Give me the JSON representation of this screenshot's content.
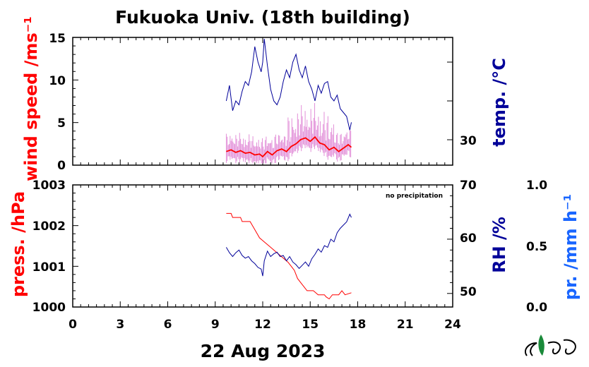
{
  "title": "Fukuoka Univ. (18th building)",
  "date_label": "22 Aug 2023",
  "colors": {
    "red": "#ff0000",
    "navy": "#000099",
    "pink": "#e28fd8",
    "blue": "#1a66ff",
    "black": "#000000"
  },
  "logo": {
    "icon": "nies-logo",
    "text": "NIES"
  },
  "x_axis": {
    "ticks": [
      "0",
      "3",
      "6",
      "9",
      "12",
      "15",
      "18",
      "21",
      "24"
    ],
    "range": [
      0,
      24
    ]
  },
  "top_panel": {
    "left_axis": {
      "label": "wind speed /ms⁻¹",
      "ticks": [
        "0",
        "5",
        "10",
        "15"
      ],
      "range": [
        0,
        15
      ]
    },
    "right_axis": {
      "label": "temp. /°C",
      "ticks": [
        "30"
      ]
    }
  },
  "bottom_panel": {
    "left_axis": {
      "label": "press. /hPa",
      "ticks": [
        "1000",
        "1001",
        "1002",
        "1003"
      ],
      "range": [
        1000,
        1003
      ]
    },
    "right_axis": {
      "label": "RH /%",
      "ticks": [
        "50",
        "60",
        "70"
      ],
      "range": [
        47.5,
        70
      ]
    },
    "far_right_axis": {
      "label": "pr. /mm h⁻¹",
      "ticks": [
        "0.0",
        "0.5",
        "1.0"
      ]
    },
    "note": "no precipitation"
  },
  "chart_data": [
    {
      "type": "line",
      "panel": "top",
      "x_range": [
        0,
        24
      ],
      "series": [
        {
          "key": "temp",
          "axis": "right",
          "points": [
            [
              9.7,
              32.0
            ],
            [
              9.9,
              32.8
            ],
            [
              10.1,
              31.5
            ],
            [
              10.3,
              32.0
            ],
            [
              10.5,
              31.8
            ],
            [
              10.7,
              32.5
            ],
            [
              10.9,
              33.0
            ],
            [
              11.1,
              32.8
            ],
            [
              11.3,
              33.5
            ],
            [
              11.5,
              34.8
            ],
            [
              11.7,
              34.0
            ],
            [
              11.9,
              33.5
            ],
            [
              12.0,
              34.0
            ],
            [
              12.1,
              35.2
            ],
            [
              12.3,
              33.8
            ],
            [
              12.5,
              32.6
            ],
            [
              12.7,
              32.0
            ],
            [
              12.9,
              31.8
            ],
            [
              13.1,
              32.2
            ],
            [
              13.3,
              33.0
            ],
            [
              13.5,
              33.6
            ],
            [
              13.7,
              33.2
            ],
            [
              13.9,
              34.0
            ],
            [
              14.1,
              34.4
            ],
            [
              14.3,
              33.6
            ],
            [
              14.5,
              33.2
            ],
            [
              14.7,
              33.8
            ],
            [
              14.9,
              33.0
            ],
            [
              15.1,
              32.6
            ],
            [
              15.3,
              32.0
            ],
            [
              15.5,
              32.8
            ],
            [
              15.7,
              32.4
            ],
            [
              15.9,
              32.9
            ],
            [
              16.1,
              33.0
            ],
            [
              16.3,
              32.2
            ],
            [
              16.5,
              32.0
            ],
            [
              16.7,
              32.3
            ],
            [
              16.9,
              31.6
            ],
            [
              17.1,
              31.4
            ],
            [
              17.3,
              31.2
            ],
            [
              17.5,
              30.5
            ],
            [
              17.6,
              30.9
            ]
          ]
        },
        {
          "key": "wind_mean",
          "axis": "left",
          "points": [
            [
              9.7,
              1.6
            ],
            [
              10.0,
              1.8
            ],
            [
              10.3,
              1.5
            ],
            [
              10.6,
              1.7
            ],
            [
              10.9,
              1.4
            ],
            [
              11.2,
              1.5
            ],
            [
              11.5,
              1.2
            ],
            [
              11.8,
              1.3
            ],
            [
              12.0,
              1.0
            ],
            [
              12.3,
              1.6
            ],
            [
              12.6,
              1.2
            ],
            [
              12.9,
              1.7
            ],
            [
              13.2,
              1.9
            ],
            [
              13.5,
              1.6
            ],
            [
              13.8,
              2.2
            ],
            [
              14.1,
              2.5
            ],
            [
              14.4,
              3.0
            ],
            [
              14.7,
              3.2
            ],
            [
              15.0,
              2.8
            ],
            [
              15.3,
              3.3
            ],
            [
              15.6,
              2.6
            ],
            [
              15.9,
              2.4
            ],
            [
              16.2,
              1.8
            ],
            [
              16.5,
              2.1
            ],
            [
              16.8,
              1.6
            ],
            [
              17.1,
              2.0
            ],
            [
              17.4,
              2.4
            ],
            [
              17.6,
              2.1
            ]
          ]
        }
      ]
    },
    {
      "type": "line",
      "panel": "bottom",
      "x_range": [
        0,
        24
      ],
      "series": [
        {
          "key": "pressure",
          "axis": "left",
          "points": [
            [
              9.7,
              1002.3
            ],
            [
              10.0,
              1002.3
            ],
            [
              10.1,
              1002.2
            ],
            [
              10.6,
              1002.2
            ],
            [
              10.7,
              1002.1
            ],
            [
              11.2,
              1002.1
            ],
            [
              11.5,
              1001.9
            ],
            [
              11.8,
              1001.7
            ],
            [
              12.1,
              1001.6
            ],
            [
              12.4,
              1001.5
            ],
            [
              12.7,
              1001.4
            ],
            [
              13.0,
              1001.3
            ],
            [
              13.3,
              1001.2
            ],
            [
              13.6,
              1001.1
            ],
            [
              13.8,
              1001.0
            ],
            [
              14.0,
              1000.9
            ],
            [
              14.2,
              1000.7
            ],
            [
              14.4,
              1000.6
            ],
            [
              14.6,
              1000.5
            ],
            [
              14.8,
              1000.4
            ],
            [
              15.2,
              1000.4
            ],
            [
              15.5,
              1000.3
            ],
            [
              15.9,
              1000.3
            ],
            [
              16.0,
              1000.25
            ],
            [
              16.2,
              1000.2
            ],
            [
              16.4,
              1000.3
            ],
            [
              16.8,
              1000.3
            ],
            [
              17.0,
              1000.4
            ],
            [
              17.2,
              1000.3
            ],
            [
              17.6,
              1000.35
            ]
          ]
        },
        {
          "key": "rh",
          "axis": "right",
          "points": [
            [
              9.7,
              58.5
            ],
            [
              9.9,
              57.5
            ],
            [
              10.1,
              56.8
            ],
            [
              10.3,
              57.5
            ],
            [
              10.5,
              58.0
            ],
            [
              10.7,
              57.0
            ],
            [
              10.9,
              56.5
            ],
            [
              11.1,
              56.8
            ],
            [
              11.3,
              56.0
            ],
            [
              11.5,
              55.5
            ],
            [
              11.7,
              54.8
            ],
            [
              11.9,
              54.5
            ],
            [
              12.0,
              53.2
            ],
            [
              12.1,
              56.0
            ],
            [
              12.3,
              57.8
            ],
            [
              12.5,
              56.8
            ],
            [
              12.7,
              57.3
            ],
            [
              12.9,
              57.6
            ],
            [
              13.1,
              56.8
            ],
            [
              13.3,
              57.0
            ],
            [
              13.5,
              56.0
            ],
            [
              13.7,
              56.8
            ],
            [
              13.9,
              55.8
            ],
            [
              14.1,
              55.3
            ],
            [
              14.3,
              54.6
            ],
            [
              14.5,
              55.2
            ],
            [
              14.7,
              55.8
            ],
            [
              14.9,
              55.0
            ],
            [
              15.1,
              56.4
            ],
            [
              15.3,
              57.2
            ],
            [
              15.5,
              58.2
            ],
            [
              15.7,
              57.6
            ],
            [
              15.9,
              58.8
            ],
            [
              16.1,
              58.5
            ],
            [
              16.3,
              60.0
            ],
            [
              16.5,
              59.5
            ],
            [
              16.7,
              61.2
            ],
            [
              16.9,
              62.0
            ],
            [
              17.1,
              62.6
            ],
            [
              17.3,
              63.2
            ],
            [
              17.5,
              64.6
            ],
            [
              17.6,
              64.0
            ]
          ]
        }
      ]
    }
  ]
}
